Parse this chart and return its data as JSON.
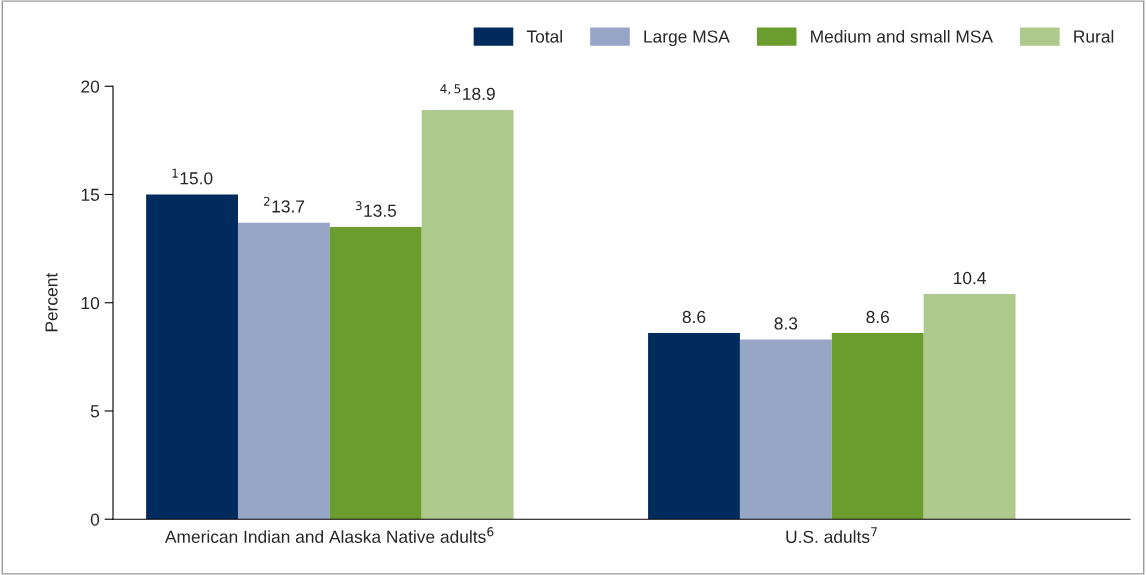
{
  "chart_data": {
    "type": "bar",
    "ylabel": "Percent",
    "categories": [
      "American Indian and Alaska Native adults$^{6}$",
      "U.S. adults$^{7}$"
    ],
    "series": [
      {
        "name": "Total",
        "color": "#002b5c",
        "values": [
          15.0,
          8.6
        ],
        "value_labels": [
          "$^{1}$15.0",
          "8.6"
        ]
      },
      {
        "name": "Large MSA",
        "color": "#97a5c7",
        "values": [
          13.7,
          8.3
        ],
        "value_labels": [
          "$^{2}$13.7",
          "8.3"
        ]
      },
      {
        "name": "Medium and small MSA",
        "color": "#6a9c2e",
        "values": [
          13.5,
          8.6
        ],
        "value_labels": [
          "$^{3}$13.5",
          "8.6"
        ]
      },
      {
        "name": "Rural",
        "color": "#adc98c",
        "values": [
          18.9,
          10.4
        ],
        "value_labels": [
          "$^{4,5}$18.9",
          "10.4"
        ]
      }
    ],
    "ylim": [
      0,
      20
    ],
    "yticks": [
      0,
      5,
      10,
      15,
      20
    ],
    "grid": false,
    "legend": "top right"
  }
}
